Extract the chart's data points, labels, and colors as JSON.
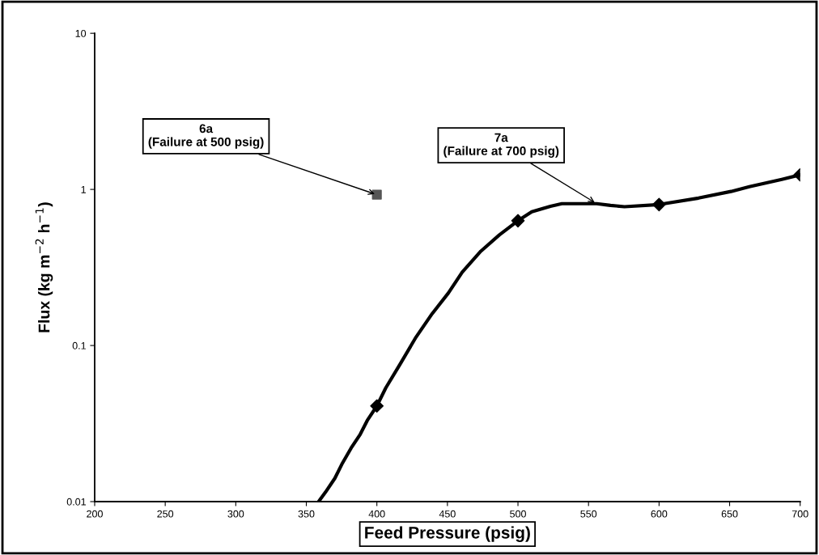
{
  "chart_data": {
    "type": "line",
    "xlabel": "Feed Pressure (psig)",
    "ylabel": "Flux (kg m$^{−2}$ h$^{−1}$)",
    "log": "y",
    "xlim": [
      200,
      700
    ],
    "xticks": [
      200,
      250,
      300,
      350,
      400,
      450,
      500,
      550,
      600,
      650,
      700
    ],
    "ylim": [
      0.01,
      10
    ],
    "yticks": [
      0.01,
      0.1,
      1,
      10
    ],
    "grid": false,
    "legend": false,
    "series": [
      {
        "color": "#000000",
        "marker": "none",
        "x": [
          358.7,
          363.6,
          370.2,
          375.1,
          381.7,
          388.2,
          393.2,
          400,
          406.3,
          416.2,
          427.7,
          439.2,
          450.7,
          460.5,
          473.7,
          486.8,
          500,
          509.8,
          523,
          531.1,
          555.8,
          565.6,
          575.5,
          600,
          628,
          651,
          664,
          687,
          700
        ],
        "values": [
          0.01,
          0.0115,
          0.0141,
          0.0173,
          0.022,
          0.027,
          0.0331,
          0.041,
          0.0535,
          0.0752,
          0.113,
          0.16,
          0.217,
          0.295,
          0.402,
          0.511,
          0.63,
          0.718,
          0.78,
          0.81,
          0.81,
          0.79,
          0.775,
          0.8,
          0.88,
          0.97,
          1.04,
          1.16,
          1.24
        ]
      },
      {
        "type": "scatter",
        "color": "#000000",
        "marker": "diamond",
        "x": [
          400,
          500,
          600,
          700
        ],
        "values": [
          0.041,
          0.63,
          0.8,
          1.24
        ]
      },
      {
        "type": "scatter",
        "color": "#555555",
        "marker": "square",
        "x": [
          400
        ],
        "values": [
          0.925
        ]
      }
    ],
    "annotations": [
      {
        "text": "6a\n(Failure at 500 psig)",
        "x": 400,
        "y": 0.925
      },
      {
        "text": "7a\n(Failure at 700 psig)",
        "x": 555.8,
        "y": 0.81
      }
    ]
  }
}
